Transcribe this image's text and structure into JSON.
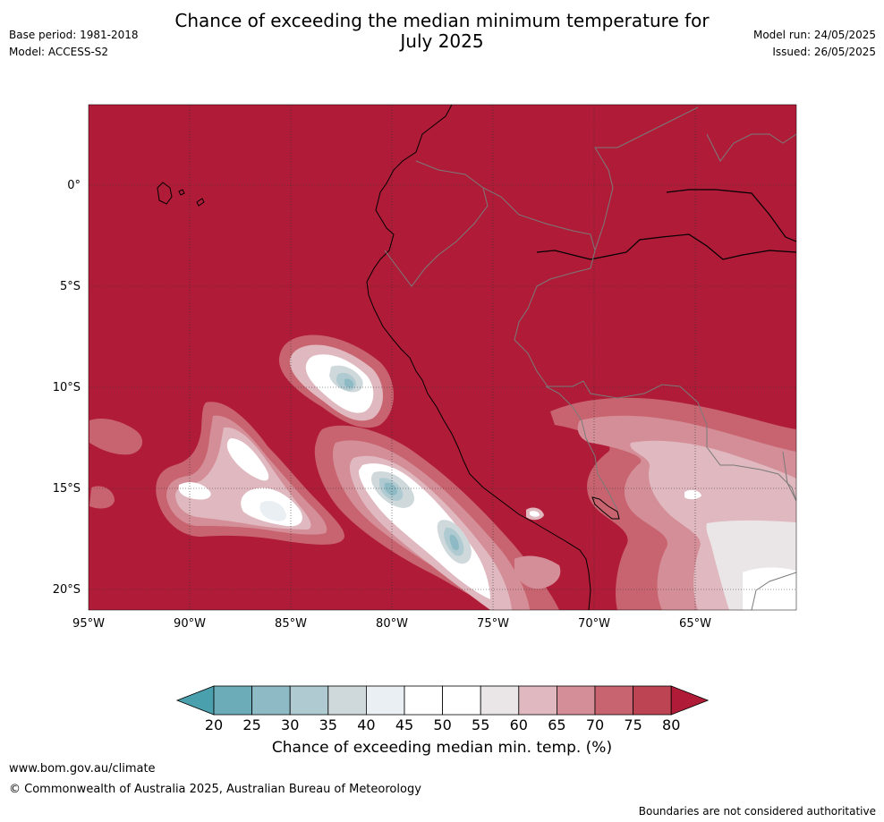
{
  "header": {
    "title_line1": "Chance of exceeding the median minimum temperature for",
    "title_line2": "July 2025",
    "base_period": "Base period: 1981-2018",
    "model": "Model: ACCESS-S2",
    "model_run": "Model run: 24/05/2025",
    "issued": "Issued: 26/05/2025"
  },
  "map": {
    "lon_range": [
      -95,
      -60
    ],
    "lat_range": [
      -21,
      4
    ],
    "lon_ticks": [
      "95°W",
      "90°W",
      "85°W",
      "80°W",
      "75°W",
      "70°W",
      "65°W"
    ],
    "lat_ticks": [
      "0°",
      "5°S",
      "10°S",
      "15°S",
      "20°S"
    ],
    "background_category": "80+"
  },
  "colorbar": {
    "label": "Chance of exceeding median min. temp. (%)",
    "ticks": [
      "20",
      "25",
      "30",
      "35",
      "40",
      "45",
      "50",
      "55",
      "60",
      "65",
      "70",
      "75",
      "80"
    ],
    "colors": [
      "#4aa0ad",
      "#6cacb8",
      "#8ebac5",
      "#afcbd1",
      "#cfd9dc",
      "#e9eff2",
      "#ffffff",
      "#ffffff",
      "#eae6e7",
      "#e0b8bf",
      "#d48e98",
      "#c8646f",
      "#bd4553",
      "#b01c38"
    ]
  },
  "footer": {
    "website": "www.bom.gov.au/climate",
    "copyright": "© Commonwealth of Australia 2025, Australian Bureau of Meteorology",
    "disclaimer": "Boundaries are not considered authoritative"
  }
}
